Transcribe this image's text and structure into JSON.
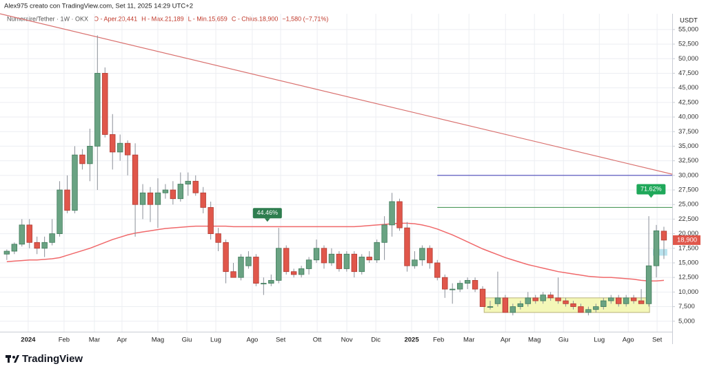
{
  "chart_data": {
    "type": "candlestick",
    "header": "Alex975 creato con TradingView.com, Set 11, 2025 14:29 UTC+2",
    "legend_symbol": "Numeraire/Tether · 1W · OKX",
    "legend_values": [
      "O - Aper.20,441",
      "H - Max.21,189",
      "L - Min.15,659",
      "C - Chius.18,900",
      "−1,580 (−7,71%)"
    ],
    "currency": "USDT",
    "last_price_label": "18,900",
    "brand": "TradingView",
    "up_color": "#6aa383",
    "down_color": "#e0574b",
    "xlim": [
      -0.9,
      88.1
    ],
    "ylim": [
      3200,
      57700
    ],
    "xticks": [
      {
        "value": 2.83,
        "label": "2024"
      },
      {
        "value": 7.58,
        "label": "Feb"
      },
      {
        "value": 11.6,
        "label": "Mar"
      },
      {
        "value": 15.25,
        "label": "Apr"
      },
      {
        "value": 20,
        "label": "Mag"
      },
      {
        "value": 23.84,
        "label": "Giu"
      },
      {
        "value": 27.67,
        "label": "Lug"
      },
      {
        "value": 32.5,
        "label": "Ago"
      },
      {
        "value": 36.26,
        "label": "Set"
      },
      {
        "value": 41.1,
        "label": "Ott"
      },
      {
        "value": 45.02,
        "label": "Nov"
      },
      {
        "value": 48.86,
        "label": "Dic"
      },
      {
        "value": 53.6,
        "label": "2025"
      },
      {
        "value": 57.17,
        "label": "Feb"
      },
      {
        "value": 61.19,
        "label": "Mar"
      },
      {
        "value": 66.03,
        "label": "Apr"
      },
      {
        "value": 69.86,
        "label": "Mag"
      },
      {
        "value": 73.7,
        "label": "Giu"
      },
      {
        "value": 78.45,
        "label": "Lug"
      },
      {
        "value": 82.28,
        "label": "Ago"
      },
      {
        "value": 86.1,
        "label": "Set"
      }
    ],
    "yticks": [
      {
        "value": 5000,
        "label": "5,000"
      },
      {
        "value": 7500,
        "label": "7,500"
      },
      {
        "value": 10000,
        "label": "10,000"
      },
      {
        "value": 12500,
        "label": "12,500"
      },
      {
        "value": 15000,
        "label": "15,000"
      },
      {
        "value": 17500,
        "label": "17,500"
      },
      {
        "value": 20000,
        "label": "20,000"
      },
      {
        "value": 22500,
        "label": "22,500"
      },
      {
        "value": 25000,
        "label": "25,000"
      },
      {
        "value": 27500,
        "label": "27,500"
      },
      {
        "value": 30000,
        "label": "30,000"
      },
      {
        "value": 32500,
        "label": "32,500"
      },
      {
        "value": 35000,
        "label": "35,000"
      },
      {
        "value": 37500,
        "label": "37,500"
      },
      {
        "value": 40000,
        "label": "40,000"
      },
      {
        "value": 42500,
        "label": "42,500"
      },
      {
        "value": 45000,
        "label": "45,000"
      },
      {
        "value": 47500,
        "label": "47,500"
      },
      {
        "value": 50000,
        "label": "50,000"
      },
      {
        "value": 52500,
        "label": "52,500"
      },
      {
        "value": 55000,
        "label": "55,000"
      }
    ],
    "grid": true,
    "ohlc": {
      "open": [
        16500,
        17000,
        18200,
        21500,
        18500,
        17500,
        18500,
        20000,
        27500,
        24000,
        33500,
        32000,
        35000,
        47500,
        37000,
        34000,
        35500,
        33500,
        25000,
        27000,
        25000,
        27000,
        27500,
        26000,
        28500,
        29000,
        27000,
        24500,
        20000,
        18500,
        13500,
        12500,
        14500,
        16000,
        11500,
        11500,
        12000,
        17500,
        13500,
        13000,
        14000,
        15500,
        17500,
        15000,
        16500,
        14000,
        16500,
        13500,
        16000,
        15500,
        18500,
        21500,
        25500,
        21000,
        14500,
        15500,
        17500,
        15000,
        12500,
        10500,
        10500,
        11500,
        12000,
        10500,
        7500,
        8000,
        9000,
        6500,
        7500,
        8000,
        9000,
        8500,
        9500,
        9000,
        8500,
        8000,
        7500,
        6500,
        7000,
        7500,
        8500,
        9000,
        8000,
        9000,
        8500,
        8000,
        14500,
        20441
      ],
      "high": [
        17300,
        18500,
        22500,
        22500,
        19500,
        19500,
        22500,
        29000,
        30000,
        35000,
        34500,
        38000,
        54000,
        48500,
        40500,
        37000,
        36000,
        35500,
        28500,
        28000,
        29500,
        28500,
        29000,
        30500,
        30500,
        30000,
        28000,
        25500,
        21000,
        19000,
        15000,
        16500,
        17000,
        16500,
        12500,
        13000,
        21000,
        18000,
        14000,
        14500,
        16000,
        19000,
        18000,
        17500,
        17000,
        17000,
        17000,
        16500,
        17000,
        19000,
        23000,
        27000,
        26000,
        22000,
        17000,
        18000,
        18000,
        15500,
        13000,
        11500,
        12000,
        12500,
        12500,
        11000,
        8500,
        13500,
        9500,
        8000,
        8500,
        10000,
        9500,
        10000,
        10000,
        12500,
        9000,
        8500,
        8000,
        7500,
        8000,
        9000,
        9500,
        9500,
        9500,
        9500,
        10500,
        23000,
        21500,
        21189
      ],
      "low": [
        15500,
        16500,
        17800,
        17500,
        16500,
        16000,
        18000,
        19500,
        23500,
        23500,
        31000,
        29000,
        27500,
        36500,
        31000,
        32500,
        30000,
        19500,
        22500,
        22000,
        21000,
        26000,
        25000,
        25500,
        26500,
        26500,
        23500,
        19000,
        17000,
        11500,
        12500,
        12000,
        14000,
        11000,
        9500,
        11000,
        11500,
        13000,
        12500,
        12500,
        13000,
        15000,
        14000,
        14500,
        13500,
        13500,
        12500,
        13000,
        15000,
        15000,
        15500,
        19500,
        20500,
        13500,
        14000,
        14500,
        14000,
        12000,
        9000,
        8000,
        10000,
        10500,
        10000,
        7500,
        7000,
        7500,
        6500,
        6000,
        7000,
        7500,
        8000,
        8000,
        8500,
        8000,
        7500,
        7000,
        6500,
        6000,
        6500,
        7000,
        8000,
        7500,
        7500,
        8000,
        8000,
        7500,
        12500,
        15659
      ],
      "close": [
        17000,
        18200,
        21500,
        18500,
        17500,
        18500,
        20000,
        27500,
        24000,
        33500,
        32000,
        35000,
        47500,
        37000,
        34000,
        35500,
        33500,
        25000,
        27000,
        25000,
        27000,
        27500,
        26000,
        28500,
        29000,
        27000,
        24500,
        20000,
        18500,
        13500,
        12500,
        16000,
        16000,
        11500,
        11500,
        12000,
        17500,
        13500,
        13000,
        14000,
        15500,
        17500,
        15000,
        16500,
        14000,
        16500,
        13500,
        16000,
        15500,
        18500,
        21500,
        25500,
        21000,
        14500,
        15500,
        17500,
        15000,
        12500,
        10500,
        10500,
        11500,
        12000,
        10500,
        7500,
        7500,
        9000,
        6500,
        7500,
        8000,
        9000,
        8500,
        9500,
        9000,
        8500,
        8000,
        7500,
        6500,
        7000,
        7500,
        8500,
        9000,
        8000,
        9000,
        8500,
        8000,
        14500,
        20500,
        18900
      ]
    },
    "series": [
      {
        "color": "#f0686a",
        "values": [
          15200,
          15300,
          15400,
          15500,
          15500,
          15600,
          15700,
          15900,
          16300,
          16700,
          17100,
          17500,
          18000,
          18500,
          19000,
          19400,
          19800,
          20100,
          20300,
          20500,
          20700,
          20900,
          21000,
          21100,
          21200,
          21300,
          21300,
          21300,
          21300,
          21300,
          21200,
          21200,
          21200,
          21200,
          21200,
          21200,
          21200,
          21200,
          21200,
          21200,
          21200,
          21200,
          21200,
          21200,
          21200,
          21200,
          21200,
          21300,
          21400,
          21500,
          21600,
          21700,
          21800,
          21800,
          21700,
          21500,
          21200,
          20800,
          20300,
          19800,
          19200,
          18600,
          18000,
          17400,
          16900,
          16400,
          15900,
          15500,
          15100,
          14700,
          14400,
          14100,
          13800,
          13500,
          13300,
          13100,
          12900,
          12700,
          12600,
          12500,
          12500,
          12400,
          12300,
          12200,
          12000,
          11900,
          11900,
          12000
        ]
      }
    ],
    "lines": [
      {
        "color": "#d9706e",
        "x": [
          -0.9,
          88.1
        ],
        "y": [
          57700,
          30200
        ]
      },
      {
        "color": "#4b49b8",
        "x": [
          57,
          88.1
        ],
        "y": [
          30000,
          30000
        ]
      },
      {
        "color": "#4e9a5c",
        "x": [
          57,
          88.1
        ],
        "y": [
          24500,
          24500
        ]
      }
    ],
    "boxes": [
      {
        "color": "#f4f7b8",
        "border": "#b9b27a",
        "x": [
          63.2,
          85.1
        ],
        "y": [
          6500,
          9000
        ]
      },
      {
        "color": "#b9e3ee",
        "border": "#b9e3ee",
        "x": [
          85.6,
          87.4
        ],
        "y": [
          16300,
          17300
        ]
      }
    ],
    "annotations": [
      {
        "text": "44.46%",
        "x": 34.5,
        "y": 22400,
        "color": "#2e7d4f"
      },
      {
        "text": "71.62%",
        "x": 85.3,
        "y": 26500,
        "color": "#1fa85a"
      }
    ]
  }
}
